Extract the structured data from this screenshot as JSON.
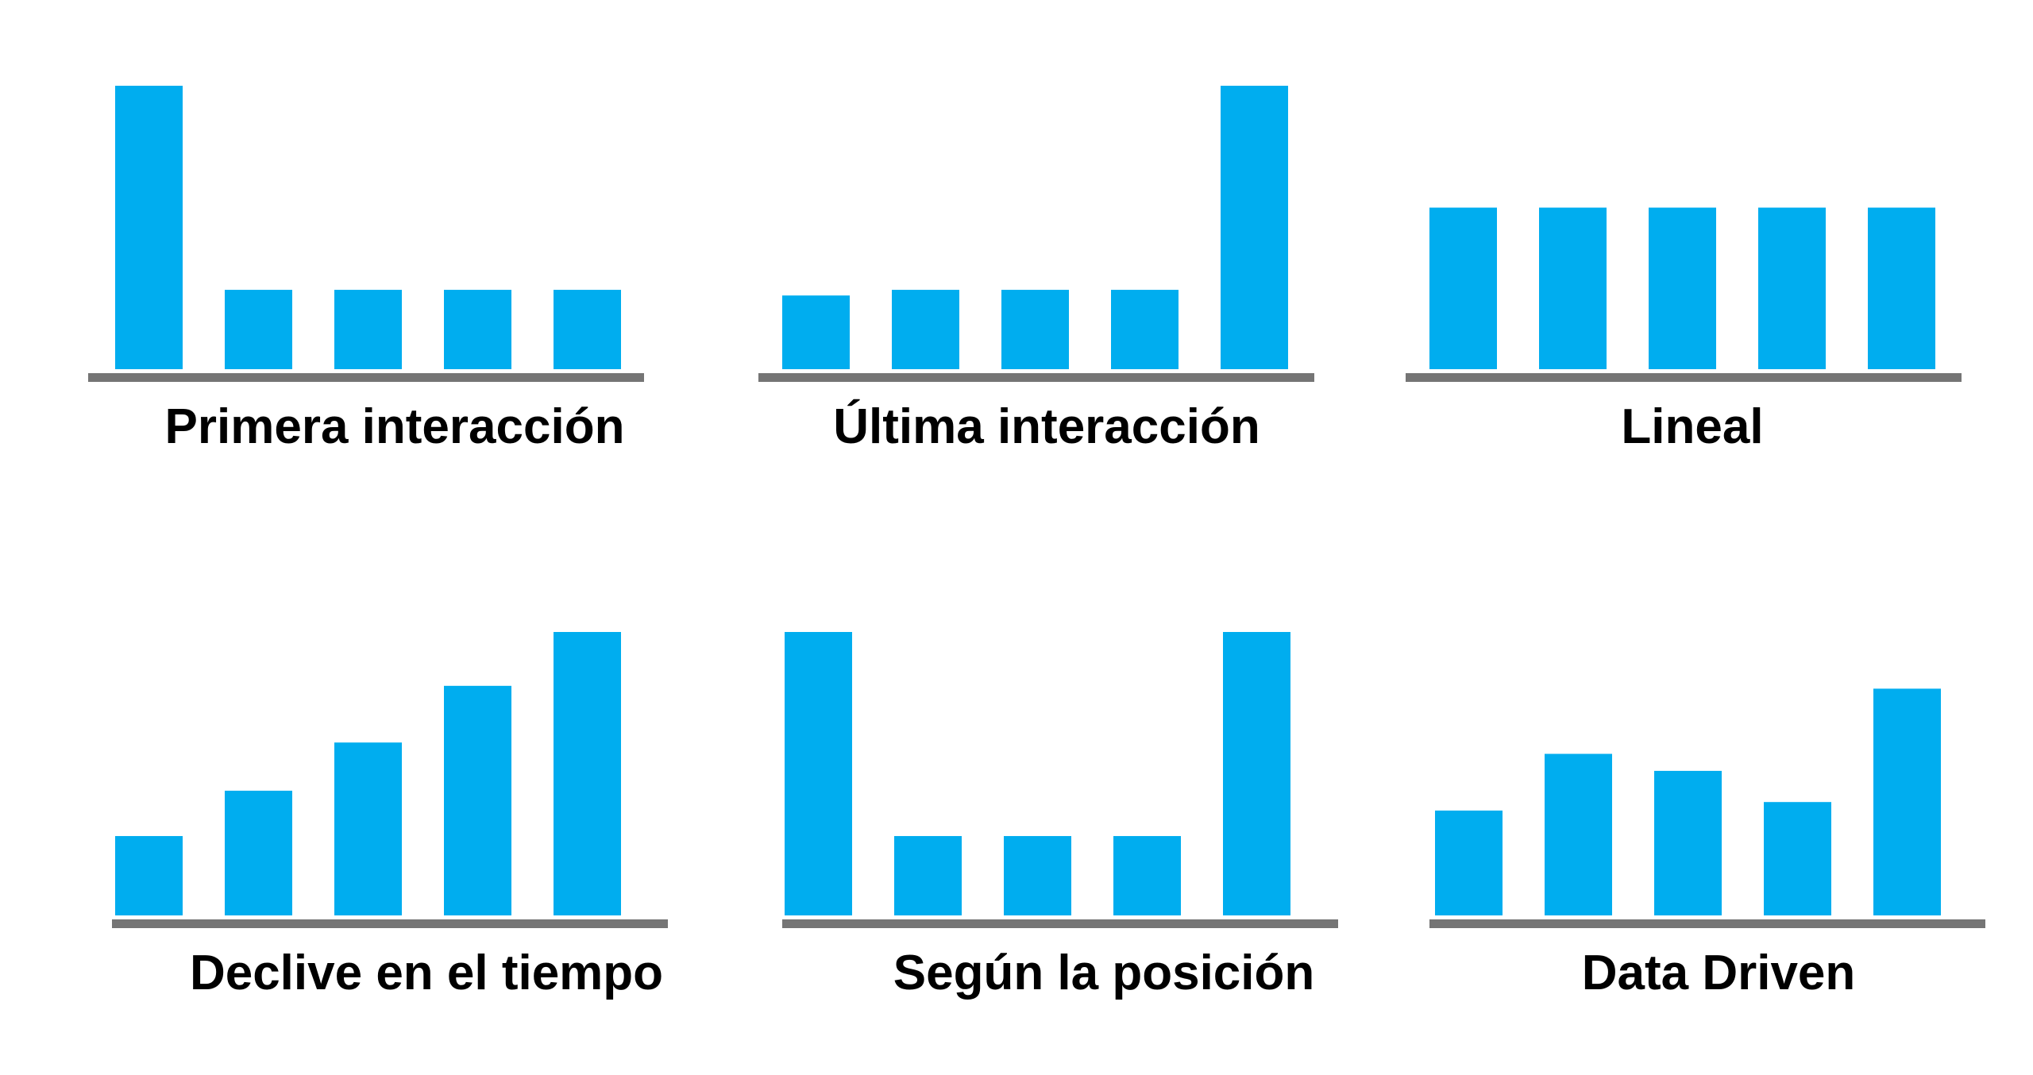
{
  "colors": {
    "bar": "#00adef",
    "baseline": "#757575",
    "text": "#000000"
  },
  "chart_data": [
    {
      "type": "bar",
      "title": "Primera interacción",
      "values": [
        1.0,
        0.28,
        0.28,
        0.28,
        0.28
      ]
    },
    {
      "type": "bar",
      "title": "Última interacción",
      "values": [
        0.26,
        0.28,
        0.28,
        0.28,
        1.0
      ]
    },
    {
      "type": "bar",
      "title": "Lineal",
      "values": [
        0.57,
        0.57,
        0.57,
        0.57,
        0.57
      ]
    },
    {
      "type": "bar",
      "title": "Declive en el tiempo",
      "values": [
        0.28,
        0.44,
        0.61,
        0.81,
        1.0
      ]
    },
    {
      "type": "bar",
      "title": "Según la posición",
      "values": [
        1.0,
        0.28,
        0.28,
        0.28,
        1.0
      ]
    },
    {
      "type": "bar",
      "title": "Data Driven",
      "values": [
        0.37,
        0.57,
        0.51,
        0.4,
        0.8
      ]
    }
  ]
}
